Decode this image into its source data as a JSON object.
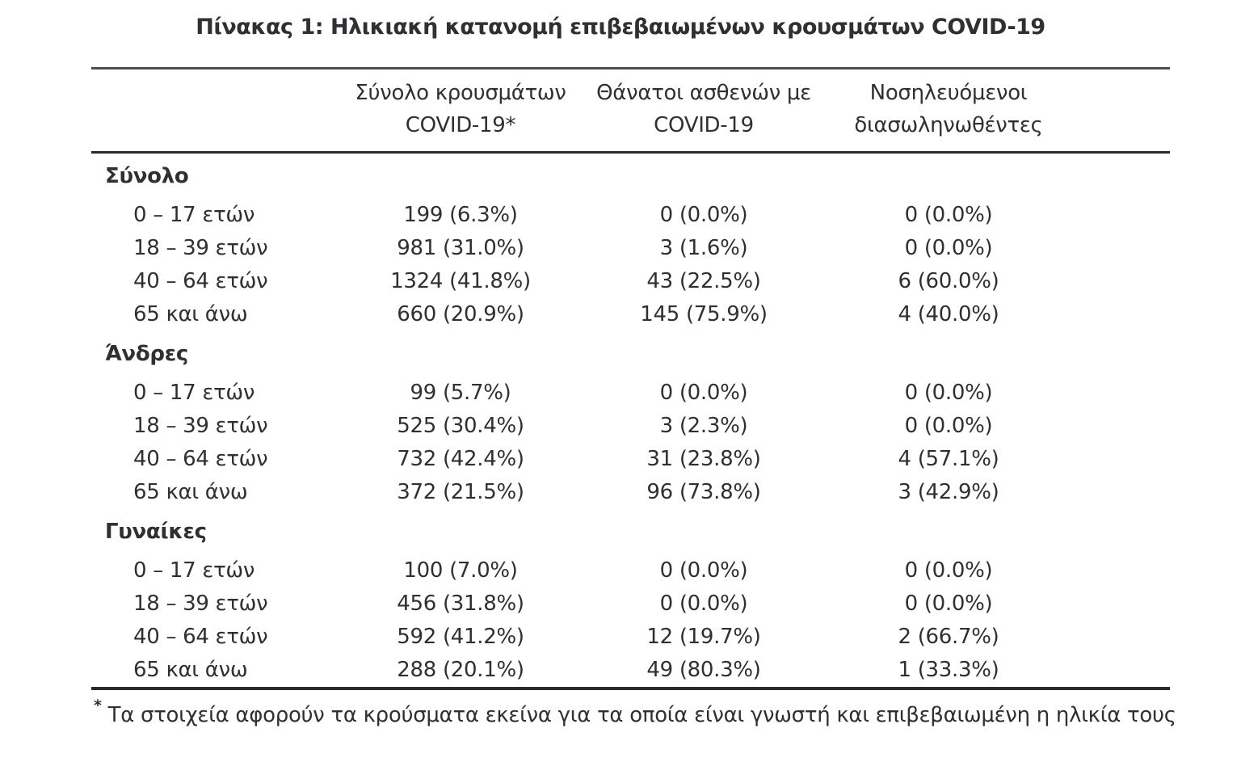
{
  "page": {
    "background": "#ffffff",
    "text_color": "#2f2f34",
    "rule_top_color": "#4f4f4f",
    "rule_dark_color": "#2b2b2b"
  },
  "title": "Πίνακας 1: Ηλικιακή κατανομή επιβεβαιωμένων κρουσμάτων COVID-19",
  "table": {
    "columns": [
      {
        "line1": "Σύνολο κρουσμάτων",
        "line2": "COVID-19*"
      },
      {
        "line1": "Θάνατοι ασθενών με",
        "line2": "COVID-19"
      },
      {
        "line1": "Νοσηλευόμενοι",
        "line2": "διασωληνωθέντες"
      }
    ],
    "sections": [
      {
        "label": "Σύνολο",
        "rows": [
          {
            "label": "0 – 17 ετών",
            "cases": "199 (6.3%)",
            "deaths": "0 (0.0%)",
            "intubated": "0 (0.0%)"
          },
          {
            "label": "18 – 39 ετών",
            "cases": "981 (31.0%)",
            "deaths": "3 (1.6%)",
            "intubated": "0 (0.0%)"
          },
          {
            "label": "40 – 64 ετών",
            "cases": "1324 (41.8%)",
            "deaths": "43 (22.5%)",
            "intubated": "6 (60.0%)"
          },
          {
            "label": "65 και άνω",
            "cases": "660 (20.9%)",
            "deaths": "145 (75.9%)",
            "intubated": "4 (40.0%)"
          }
        ]
      },
      {
        "label": "Άνδρες",
        "rows": [
          {
            "label": "0 – 17 ετών",
            "cases": "99 (5.7%)",
            "deaths": "0 (0.0%)",
            "intubated": "0 (0.0%)"
          },
          {
            "label": "18 – 39 ετών",
            "cases": "525 (30.4%)",
            "deaths": "3 (2.3%)",
            "intubated": "0 (0.0%)"
          },
          {
            "label": "40 – 64 ετών",
            "cases": "732 (42.4%)",
            "deaths": "31 (23.8%)",
            "intubated": "4 (57.1%)"
          },
          {
            "label": "65 και άνω",
            "cases": "372 (21.5%)",
            "deaths": "96 (73.8%)",
            "intubated": "3 (42.9%)"
          }
        ]
      },
      {
        "label": "Γυναίκες",
        "rows": [
          {
            "label": "0 – 17 ετών",
            "cases": "100 (7.0%)",
            "deaths": "0 (0.0%)",
            "intubated": "0 (0.0%)"
          },
          {
            "label": "18 – 39 ετών",
            "cases": "456 (31.8%)",
            "deaths": "0 (0.0%)",
            "intubated": "0 (0.0%)"
          },
          {
            "label": "40 – 64 ετών",
            "cases": "592 (41.2%)",
            "deaths": "12 (19.7%)",
            "intubated": "2 (66.7%)"
          },
          {
            "label": "65 και άνω",
            "cases": "288 (20.1%)",
            "deaths": "49 (80.3%)",
            "intubated": "1 (33.3%)"
          }
        ]
      }
    ],
    "footnote_marker": "*",
    "footnote": "Τα στοιχεία αφορούν τα κρούσματα εκείνα για τα οποία είναι γνωστή και επιβεβαιωμένη η ηλικία τους"
  }
}
